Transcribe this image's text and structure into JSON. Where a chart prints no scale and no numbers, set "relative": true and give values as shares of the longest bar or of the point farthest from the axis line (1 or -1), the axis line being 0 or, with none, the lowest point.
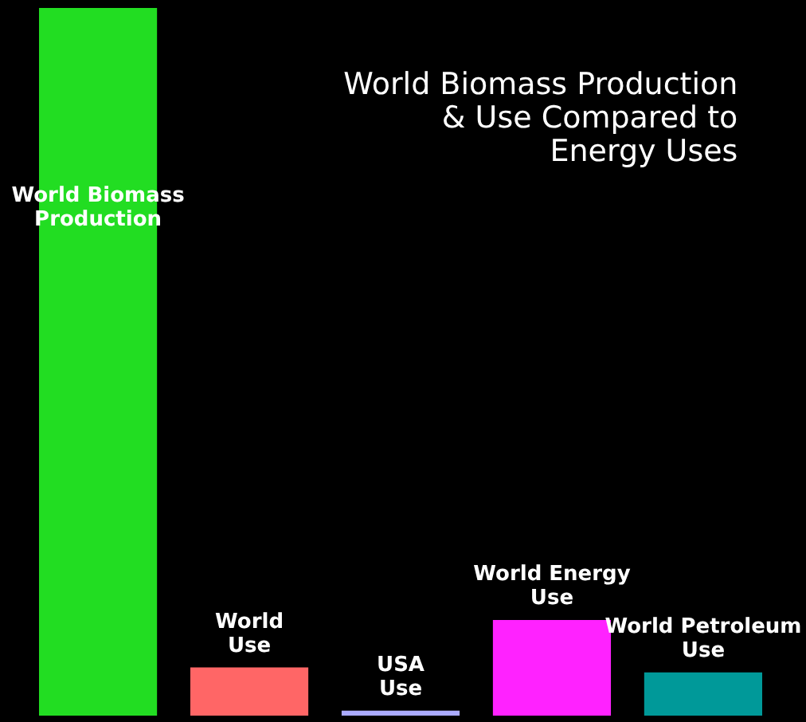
{
  "chart_data": {
    "type": "bar",
    "title": "World Biomass Production\n& Use Compared to\nEnergy Uses",
    "relative": true,
    "categories": [
      "World Biomass\nProduction",
      "World\nUse",
      "USA\nUse",
      "World Energy\nUse",
      "World Petroleum\nUse"
    ],
    "values": [
      1,
      0.068,
      0.007,
      0.135,
      0.061
    ],
    "colors": [
      "#22dd22",
      "#ff6666",
      "#aaaaff",
      "#ff22ff",
      "#009999"
    ]
  }
}
